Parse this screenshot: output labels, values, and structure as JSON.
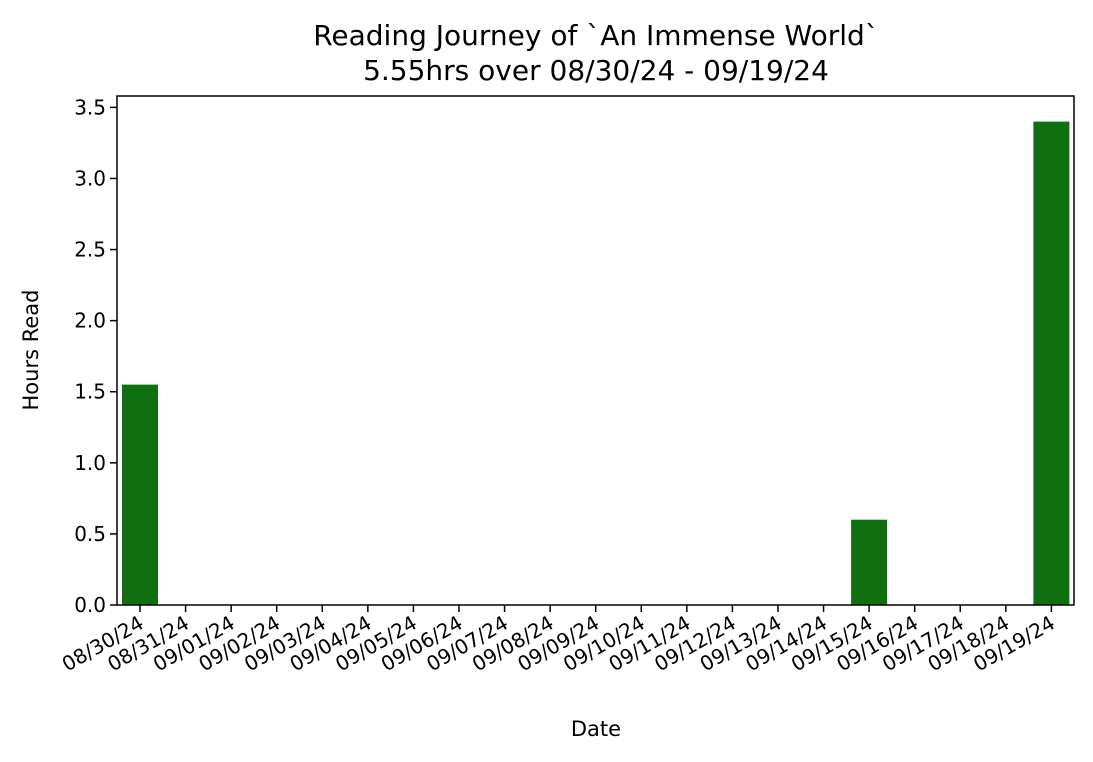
{
  "chart_data": {
    "type": "bar",
    "title": "Reading Journey of `An Immense World`",
    "subtitle": "5.55hrs over 08/30/24 - 09/19/24",
    "xlabel": "Date",
    "ylabel": "Hours Read",
    "categories": [
      "08/30/24",
      "08/31/24",
      "09/01/24",
      "09/02/24",
      "09/03/24",
      "09/04/24",
      "09/05/24",
      "09/06/24",
      "09/07/24",
      "09/08/24",
      "09/09/24",
      "09/10/24",
      "09/11/24",
      "09/12/24",
      "09/13/24",
      "09/14/24",
      "09/15/24",
      "09/16/24",
      "09/17/24",
      "09/18/24",
      "09/19/24"
    ],
    "values": [
      1.55,
      0,
      0,
      0,
      0,
      0,
      0,
      0,
      0,
      0,
      0,
      0,
      0,
      0,
      0,
      0,
      0.6,
      0,
      0,
      0,
      3.4
    ],
    "ylim": [
      0,
      3.58
    ],
    "yticks": [
      "0.0",
      "0.5",
      "1.0",
      "1.5",
      "2.0",
      "2.5",
      "3.0",
      "3.5"
    ],
    "grid": false,
    "bar_color": "#107010"
  }
}
